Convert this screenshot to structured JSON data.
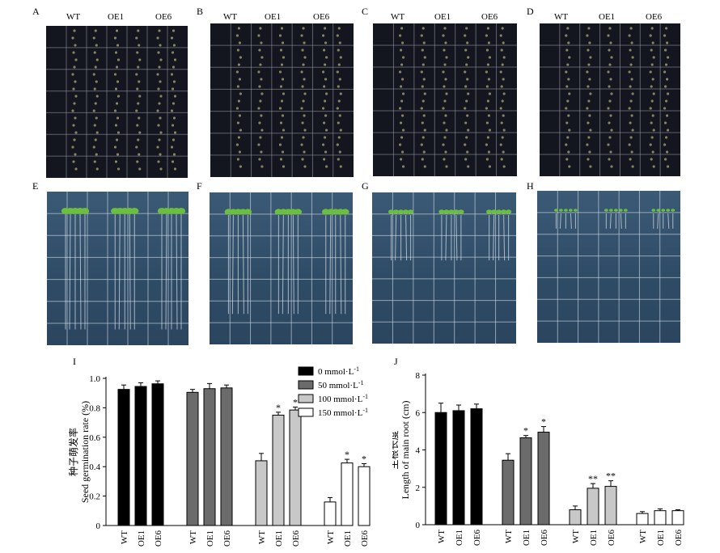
{
  "panels": {
    "top_labels": [
      "A",
      "B",
      "C",
      "D"
    ],
    "bottom_labels": [
      "E",
      "F",
      "G",
      "H"
    ],
    "genotypes": [
      "WT",
      "OE1",
      "OE6"
    ]
  },
  "chart_data": [
    {
      "type": "bar",
      "panel_label": "I",
      "ylabel": "种子萌发率\nSeed germination rate (%)",
      "ylim": [
        0,
        1.0
      ],
      "yticks": [
        "0",
        "0.2",
        "0.4",
        "0.6",
        "0.8",
        "1.0"
      ],
      "yticks_values": [
        0,
        0.2,
        0.4,
        0.6,
        0.8,
        1.0
      ],
      "groups": [
        "0 mmol·L",
        "50 mmol·L",
        "100 mmol·L",
        "150 mmol·L"
      ],
      "categories": [
        "WT",
        "OE1",
        "OE6"
      ],
      "legend": {
        "placement": "top-right",
        "entries": [
          {
            "label": "0 mmol·L",
            "sup": "-1",
            "color": "#000000"
          },
          {
            "label": "50 mmol·L",
            "sup": "-1",
            "color": "#6b6b6b"
          },
          {
            "label": "100 mmol·L",
            "sup": "-1",
            "color": "#c8c8c8"
          },
          {
            "label": "150 mmol·L",
            "sup": "-1",
            "color": "#ffffff"
          }
        ]
      },
      "series": [
        {
          "values": [
            0.925,
            0.945,
            0.963
          ],
          "errors": [
            0.03,
            0.025,
            0.02
          ],
          "sig": [
            "",
            "",
            ""
          ]
        },
        {
          "values": [
            0.905,
            0.93,
            0.935
          ],
          "errors": [
            0.02,
            0.035,
            0.02
          ],
          "sig": [
            "",
            "",
            ""
          ]
        },
        {
          "values": [
            0.44,
            0.75,
            0.785
          ],
          "errors": [
            0.05,
            0.02,
            0.02
          ],
          "sig": [
            "",
            "*",
            "*"
          ]
        },
        {
          "values": [
            0.16,
            0.425,
            0.4
          ],
          "errors": [
            0.03,
            0.025,
            0.02
          ],
          "sig": [
            "",
            "*",
            "*"
          ]
        }
      ]
    },
    {
      "type": "bar",
      "panel_label": "J",
      "ylabel": "主根长度\nLength of main root (cm)",
      "ylim": [
        0,
        8
      ],
      "yticks": [
        "0",
        "2",
        "4",
        "6",
        "8"
      ],
      "yticks_values": [
        0,
        2,
        4,
        6,
        8
      ],
      "categories": [
        "WT",
        "OE1",
        "OE6"
      ],
      "series": [
        {
          "values": [
            6.0,
            6.1,
            6.2
          ],
          "errors": [
            0.5,
            0.3,
            0.25
          ],
          "sig": [
            "",
            "",
            ""
          ]
        },
        {
          "values": [
            3.45,
            4.65,
            4.95
          ],
          "errors": [
            0.35,
            0.12,
            0.3
          ],
          "sig": [
            "",
            "*",
            "*"
          ]
        },
        {
          "values": [
            0.8,
            1.95,
            2.05
          ],
          "errors": [
            0.2,
            0.25,
            0.3
          ],
          "sig": [
            "",
            "**",
            "**"
          ]
        },
        {
          "values": [
            0.6,
            0.75,
            0.75
          ],
          "errors": [
            0.1,
            0.1,
            0.05
          ],
          "sig": [
            "",
            "",
            ""
          ]
        }
      ]
    }
  ]
}
